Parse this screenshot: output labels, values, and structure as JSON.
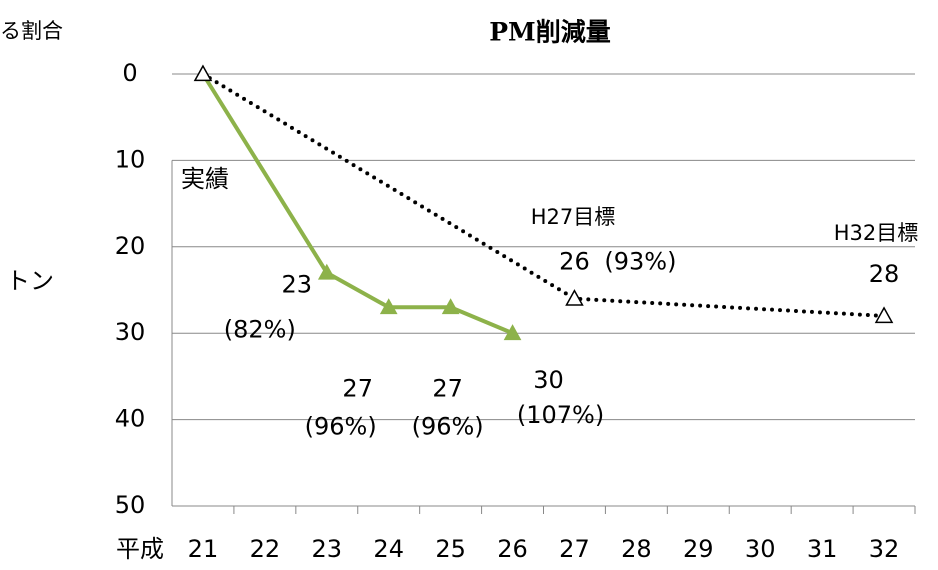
{
  "chart_data": {
    "type": "line",
    "title": "PM削減量",
    "y_label": "トン",
    "y_note": "る割合",
    "x_label": "平成",
    "xlim": [
      20.5,
      32.5
    ],
    "xticks": [
      21,
      22,
      23,
      24,
      25,
      26,
      27,
      28,
      29,
      30,
      31,
      32
    ],
    "ylim": [
      50,
      0
    ],
    "yticks": [
      0,
      10,
      20,
      30,
      40,
      50
    ],
    "grid": true,
    "series": [
      {
        "color": "#8db24a",
        "style": "solid",
        "marker": "filled-triangle",
        "x": [
          21,
          23,
          24,
          25,
          26
        ],
        "values": [
          0,
          23,
          27,
          27,
          30
        ],
        "value_labels": [
          null,
          "23",
          "27",
          "27",
          "30"
        ],
        "percent_labels": [
          null,
          "(82%)",
          "(96%)",
          "(96%)",
          "(107%)"
        ]
      },
      {
        "color": "#000000",
        "style": "dotted",
        "marker": "hollow-triangle",
        "x": [
          21,
          27,
          32
        ],
        "values": [
          0,
          26,
          28
        ],
        "value_labels": [
          null,
          "26",
          "28"
        ],
        "percent_labels": [
          null,
          "(93%)",
          null
        ]
      }
    ],
    "annotations": [
      "実績",
      "H27目標",
      "H32目標"
    ]
  }
}
